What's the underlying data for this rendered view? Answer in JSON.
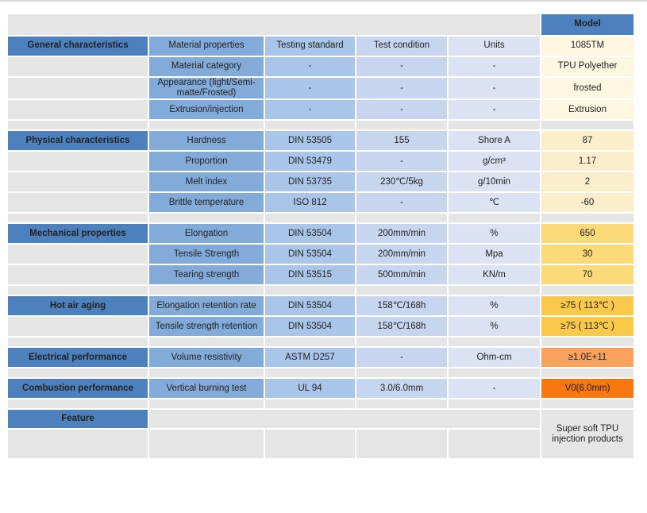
{
  "palette": {
    "header_blue": "#4D81BD",
    "section_blue": "#4D81BD",
    "col_property": "#83ABDA",
    "col_standard": "#A9C6E8",
    "col_condition": "#C7D6EF",
    "col_units": "#DAE2F3",
    "model_cream": "#FDF6E1",
    "model_cream_deep": "#FCEECB",
    "model_yellow": "#FCDA79",
    "model_gold": "#FBC94A",
    "model_orange": "#F9A25E",
    "model_deep_orange": "#F8770F",
    "stripe_gray": "#E6E5E5",
    "text_dark": "#222222",
    "text_white": "#FFFFFF",
    "divider_gray": "#D8D7D7"
  },
  "chart_data": {
    "type": "table",
    "title": "TPU material specification sheet, model 1085TM",
    "rows": [
      {
        "type": "top",
        "cells": [
          {
            "s": "stripe",
            "c": 5,
            "t": ""
          },
          {
            "s": "hdr",
            "t": "Model",
            "n": "model-column-header"
          }
        ]
      },
      {
        "type": "head",
        "cells": [
          {
            "s": "cat",
            "t": "General characteristics",
            "n": "section-header-general"
          },
          {
            "s": "c2",
            "t": "Material properties",
            "n": "column-header-material-properties"
          },
          {
            "s": "c3",
            "t": "Testing standard",
            "n": "column-header-testing-standard"
          },
          {
            "s": "c4",
            "t": "Test condition",
            "n": "column-header-test-condition"
          },
          {
            "s": "c5",
            "t": "Units",
            "n": "column-header-units"
          },
          {
            "s": "cream",
            "t": "1085TM",
            "n": "model-number-cell"
          }
        ]
      },
      {
        "type": "data",
        "cells": [
          {
            "s": "stripe",
            "t": ""
          },
          {
            "s": "c2",
            "t": "Material category"
          },
          {
            "s": "c3",
            "t": "-"
          },
          {
            "s": "c4",
            "t": "-"
          },
          {
            "s": "c5",
            "t": "-"
          },
          {
            "s": "cream",
            "t": "TPU Polyether",
            "n": "model-value-cell"
          }
        ]
      },
      {
        "type": "tall",
        "cells": [
          {
            "s": "stripe",
            "t": ""
          },
          {
            "s": "c2",
            "t": "Appearance (light/Semi-matte/Frosted)"
          },
          {
            "s": "c3",
            "t": "-"
          },
          {
            "s": "c4",
            "t": "-"
          },
          {
            "s": "c5",
            "t": "-"
          },
          {
            "s": "cream",
            "t": "frosted",
            "n": "model-value-cell"
          }
        ]
      },
      {
        "type": "data",
        "cells": [
          {
            "s": "stripe",
            "t": ""
          },
          {
            "s": "c2",
            "t": "Extrusion/injection"
          },
          {
            "s": "c3",
            "t": "-"
          },
          {
            "s": "c4",
            "t": "-"
          },
          {
            "s": "c5",
            "t": "-"
          },
          {
            "s": "cream",
            "t": "Extrusion",
            "n": "model-value-cell"
          }
        ]
      },
      {
        "type": "spacer",
        "cells": [
          {
            "s": "stripe",
            "t": ""
          },
          {
            "s": "stripe",
            "t": ""
          },
          {
            "s": "stripe",
            "t": ""
          },
          {
            "s": "stripe",
            "t": ""
          },
          {
            "s": "stripe",
            "t": ""
          },
          {
            "s": "stripe",
            "t": ""
          }
        ]
      },
      {
        "type": "data",
        "cells": [
          {
            "s": "cat",
            "t": "Physical characteristics",
            "n": "section-header-physical"
          },
          {
            "s": "c2",
            "t": "Hardness"
          },
          {
            "s": "c3",
            "t": "DIN 53505"
          },
          {
            "s": "c4",
            "t": "155"
          },
          {
            "s": "c5",
            "t": "Shore A"
          },
          {
            "s": "cream2",
            "t": "87",
            "n": "model-value-cell"
          }
        ]
      },
      {
        "type": "data",
        "cells": [
          {
            "s": "stripe",
            "t": ""
          },
          {
            "s": "c2",
            "t": "Proportion"
          },
          {
            "s": "c3",
            "t": "DIN 53479"
          },
          {
            "s": "c4",
            "t": "-"
          },
          {
            "s": "c5",
            "t": "g/cm³"
          },
          {
            "s": "cream2",
            "t": "1.17",
            "n": "model-value-cell"
          }
        ]
      },
      {
        "type": "data",
        "cells": [
          {
            "s": "stripe",
            "t": ""
          },
          {
            "s": "c2",
            "t": "Melt index"
          },
          {
            "s": "c3",
            "t": "DIN 53735"
          },
          {
            "s": "c4",
            "t": "230℃/5kg"
          },
          {
            "s": "c5",
            "t": "g/10min"
          },
          {
            "s": "cream2",
            "t": "2",
            "n": "model-value-cell"
          }
        ]
      },
      {
        "type": "data",
        "cells": [
          {
            "s": "stripe",
            "t": ""
          },
          {
            "s": "c2",
            "t": "Brittle temperature"
          },
          {
            "s": "c3",
            "t": "ISO 812"
          },
          {
            "s": "c4",
            "t": "-"
          },
          {
            "s": "c5",
            "t": "℃"
          },
          {
            "s": "cream2",
            "t": "-60",
            "n": "model-value-cell"
          }
        ]
      },
      {
        "type": "spacer",
        "cells": [
          {
            "s": "stripe",
            "t": ""
          },
          {
            "s": "stripe",
            "t": ""
          },
          {
            "s": "stripe",
            "t": ""
          },
          {
            "s": "stripe",
            "t": ""
          },
          {
            "s": "stripe",
            "t": ""
          },
          {
            "s": "stripe",
            "t": ""
          }
        ]
      },
      {
        "type": "data",
        "cells": [
          {
            "s": "cat",
            "t": "Mechanical properties",
            "n": "section-header-mechanical"
          },
          {
            "s": "c2",
            "t": "Elongation"
          },
          {
            "s": "c3",
            "t": "DIN 53504"
          },
          {
            "s": "c4",
            "t": "200mm/min"
          },
          {
            "s": "c5",
            "t": "%"
          },
          {
            "s": "yellow",
            "t": "650",
            "n": "model-value-cell"
          }
        ]
      },
      {
        "type": "data",
        "cells": [
          {
            "s": "stripe",
            "t": ""
          },
          {
            "s": "c2",
            "t": "Tensile Strength"
          },
          {
            "s": "c3",
            "t": "DIN 53504"
          },
          {
            "s": "c4",
            "t": "200mm/min"
          },
          {
            "s": "c5",
            "t": "Mpa"
          },
          {
            "s": "yellow",
            "t": "30",
            "n": "model-value-cell"
          }
        ]
      },
      {
        "type": "data",
        "cells": [
          {
            "s": "stripe",
            "t": ""
          },
          {
            "s": "c2",
            "t": "Tearing strength"
          },
          {
            "s": "c3",
            "t": "DIN 53515"
          },
          {
            "s": "c4",
            "t": "500mm/min"
          },
          {
            "s": "c5",
            "t": "KN/m"
          },
          {
            "s": "yellow",
            "t": "70",
            "n": "model-value-cell"
          }
        ]
      },
      {
        "type": "spacer",
        "cells": [
          {
            "s": "stripe",
            "t": ""
          },
          {
            "s": "stripe",
            "t": ""
          },
          {
            "s": "stripe",
            "t": ""
          },
          {
            "s": "stripe",
            "t": ""
          },
          {
            "s": "stripe",
            "t": ""
          },
          {
            "s": "stripe",
            "t": ""
          }
        ]
      },
      {
        "type": "data",
        "cells": [
          {
            "s": "cat",
            "t": "Hot air aging",
            "n": "section-header-hot-air-aging"
          },
          {
            "s": "c2",
            "t": "Elongation retention rate"
          },
          {
            "s": "c3",
            "t": "DIN 53504"
          },
          {
            "s": "c4",
            "t": "158℃/168h"
          },
          {
            "s": "c5",
            "t": "%"
          },
          {
            "s": "gold",
            "t": "≥75 ( 113℃ )",
            "n": "model-value-cell"
          }
        ]
      },
      {
        "type": "data",
        "cells": [
          {
            "s": "stripe",
            "t": ""
          },
          {
            "s": "c2",
            "t": "Tensile strength retention"
          },
          {
            "s": "c3",
            "t": "DIN 53504"
          },
          {
            "s": "c4",
            "t": "158℃/168h"
          },
          {
            "s": "c5",
            "t": "%"
          },
          {
            "s": "gold",
            "t": "≥75 ( 113℃ )",
            "n": "model-value-cell"
          }
        ]
      },
      {
        "type": "spacer",
        "cells": [
          {
            "s": "stripe",
            "t": ""
          },
          {
            "s": "stripe",
            "t": ""
          },
          {
            "s": "stripe",
            "t": ""
          },
          {
            "s": "stripe",
            "t": ""
          },
          {
            "s": "stripe",
            "t": ""
          },
          {
            "s": "stripe",
            "t": ""
          }
        ]
      },
      {
        "type": "data",
        "cells": [
          {
            "s": "cat",
            "t": "Electrical performance",
            "n": "section-header-electrical"
          },
          {
            "s": "c2",
            "t": "Volume resistivity"
          },
          {
            "s": "c3",
            "t": "ASTM D257"
          },
          {
            "s": "c4",
            "t": "-"
          },
          {
            "s": "c5",
            "t": "Ohm-cm"
          },
          {
            "s": "orange",
            "t": "≥1.0E+11",
            "n": "model-value-cell"
          }
        ]
      },
      {
        "type": "spacer",
        "cells": [
          {
            "s": "stripe",
            "t": ""
          },
          {
            "s": "stripe",
            "t": ""
          },
          {
            "s": "stripe",
            "t": ""
          },
          {
            "s": "stripe",
            "t": ""
          },
          {
            "s": "stripe",
            "t": ""
          },
          {
            "s": "stripe",
            "t": ""
          }
        ]
      },
      {
        "type": "data",
        "cells": [
          {
            "s": "cat",
            "t": "Combustion performance",
            "n": "section-header-combustion"
          },
          {
            "s": "c2",
            "t": "Vertical burning test"
          },
          {
            "s": "c3",
            "t": "UL 94"
          },
          {
            "s": "c4",
            "t": "3.0/6.0mm"
          },
          {
            "s": "c5",
            "t": "-"
          },
          {
            "s": "dorange",
            "t": "V0(6.0mm)",
            "n": "model-value-cell"
          }
        ]
      },
      {
        "type": "spacer",
        "cells": [
          {
            "s": "stripe",
            "t": ""
          },
          {
            "s": "stripe",
            "t": ""
          },
          {
            "s": "stripe",
            "t": ""
          },
          {
            "s": "stripe",
            "t": ""
          },
          {
            "s": "stripe",
            "t": ""
          },
          {
            "s": "stripe",
            "t": ""
          }
        ]
      },
      {
        "type": "feature",
        "cells": [
          {
            "s": "cat",
            "t": "Feature",
            "n": "section-header-feature"
          },
          {
            "s": "stripe",
            "c": 4,
            "t": ""
          },
          {
            "s": "feat",
            "r": 2,
            "t": "Super soft TPU injection products",
            "n": "feature-note-cell"
          }
        ]
      },
      {
        "type": "bottom",
        "cells": [
          {
            "s": "stripe",
            "t": ""
          },
          {
            "s": "stripe",
            "t": ""
          },
          {
            "s": "stripe",
            "t": ""
          },
          {
            "s": "stripe",
            "t": ""
          },
          {
            "s": "stripe",
            "t": ""
          }
        ]
      }
    ]
  }
}
